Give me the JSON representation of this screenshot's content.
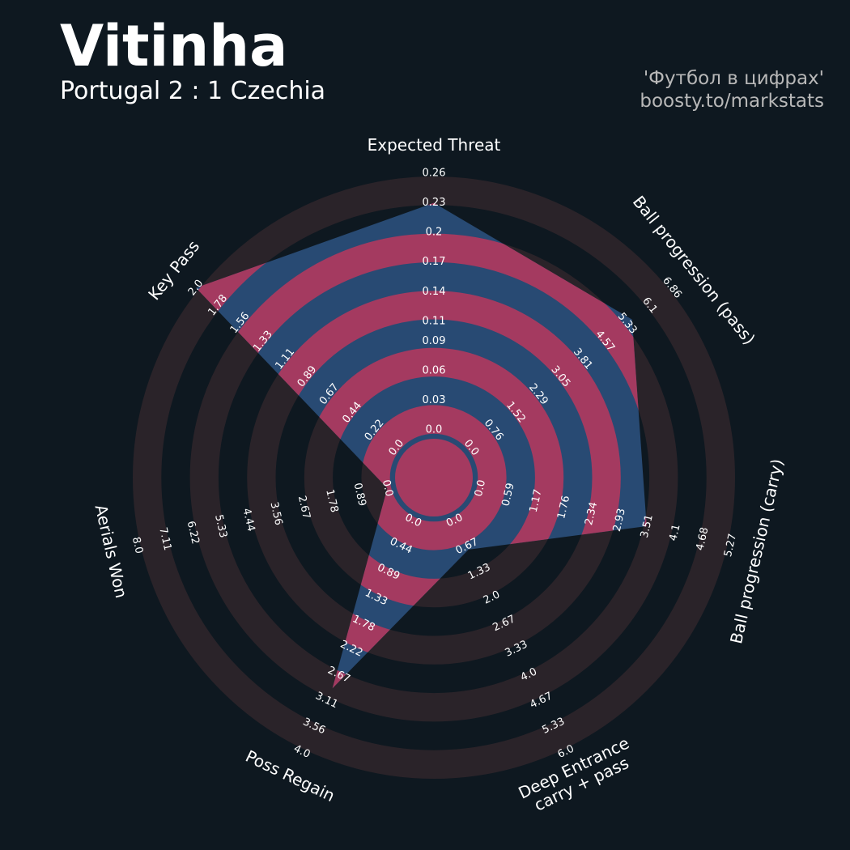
{
  "chart_data": {
    "type": "radar",
    "title": "Vitinha",
    "subtitle": "Portugal 2 : 1 Czechia",
    "credits": [
      "'Футбол в цифрах'",
      "boosty.to/markstats"
    ],
    "color": "#284a73",
    "ring_color": "#a43a60",
    "params": [
      {
        "label": [
          "Expected Threat"
        ],
        "lim": [
          0,
          0.26
        ],
        "ticks": [
          {
            "value": 0,
            "label": "0.0"
          },
          0.03,
          0.06,
          0.09,
          0.11,
          0.14,
          0.17,
          0.2,
          0.23,
          0.26
        ]
      },
      {
        "label": [
          "Ball progression (pass)"
        ],
        "lim": [
          0,
          6.86
        ],
        "ticks": [
          {
            "value": 0,
            "label": "0.0"
          },
          0.76,
          1.52,
          2.29,
          3.05,
          3.81,
          4.57,
          5.33,
          6.1,
          6.86
        ]
      },
      {
        "label": [
          "Ball progression (carry)"
        ],
        "lim": [
          0,
          5.27
        ],
        "ticks": [
          {
            "value": 0,
            "label": "0.0"
          },
          0.59,
          1.17,
          1.76,
          2.34,
          2.93,
          3.51,
          4.1,
          4.68,
          5.27
        ]
      },
      {
        "label": [
          "Deep Entrance",
          "carry + pass"
        ],
        "lim": [
          0,
          6
        ],
        "ticks": [
          {
            "value": 0,
            "label": "0.0"
          },
          0.67,
          1.33,
          {
            "value": 2,
            "label": "2.0"
          },
          2.67,
          3.33,
          {
            "value": 4,
            "label": "4.0"
          },
          4.67,
          5.33,
          {
            "value": 6,
            "label": "6.0"
          }
        ]
      },
      {
        "label": [
          "Poss Regain"
        ],
        "lim": [
          0,
          4
        ],
        "ticks": [
          {
            "value": 0,
            "label": "0.0"
          },
          0.44,
          0.89,
          1.33,
          1.78,
          2.22,
          2.67,
          3.11,
          3.56,
          {
            "value": 4,
            "label": "4.0"
          }
        ]
      },
      {
        "label": [
          "Aerials Won"
        ],
        "lim": [
          0,
          8
        ],
        "ticks": [
          {
            "value": 0,
            "label": "0.0"
          },
          0.89,
          1.78,
          2.67,
          3.56,
          4.44,
          5.33,
          6.22,
          7.11,
          {
            "value": 8,
            "label": "8.0"
          }
        ]
      },
      {
        "label": [
          "Key Pass"
        ],
        "lim": [
          0,
          2
        ],
        "ticks": [
          {
            "value": 0,
            "label": "0.0"
          },
          0.22,
          0.44,
          0.67,
          0.89,
          1.11,
          1.33,
          1.56,
          1.78,
          {
            "value": 2,
            "label": "2.0"
          }
        ]
      }
    ],
    "values": [
      0.23,
      5.5,
      3.5,
      0.75,
      2.9,
      0,
      2
    ]
  }
}
